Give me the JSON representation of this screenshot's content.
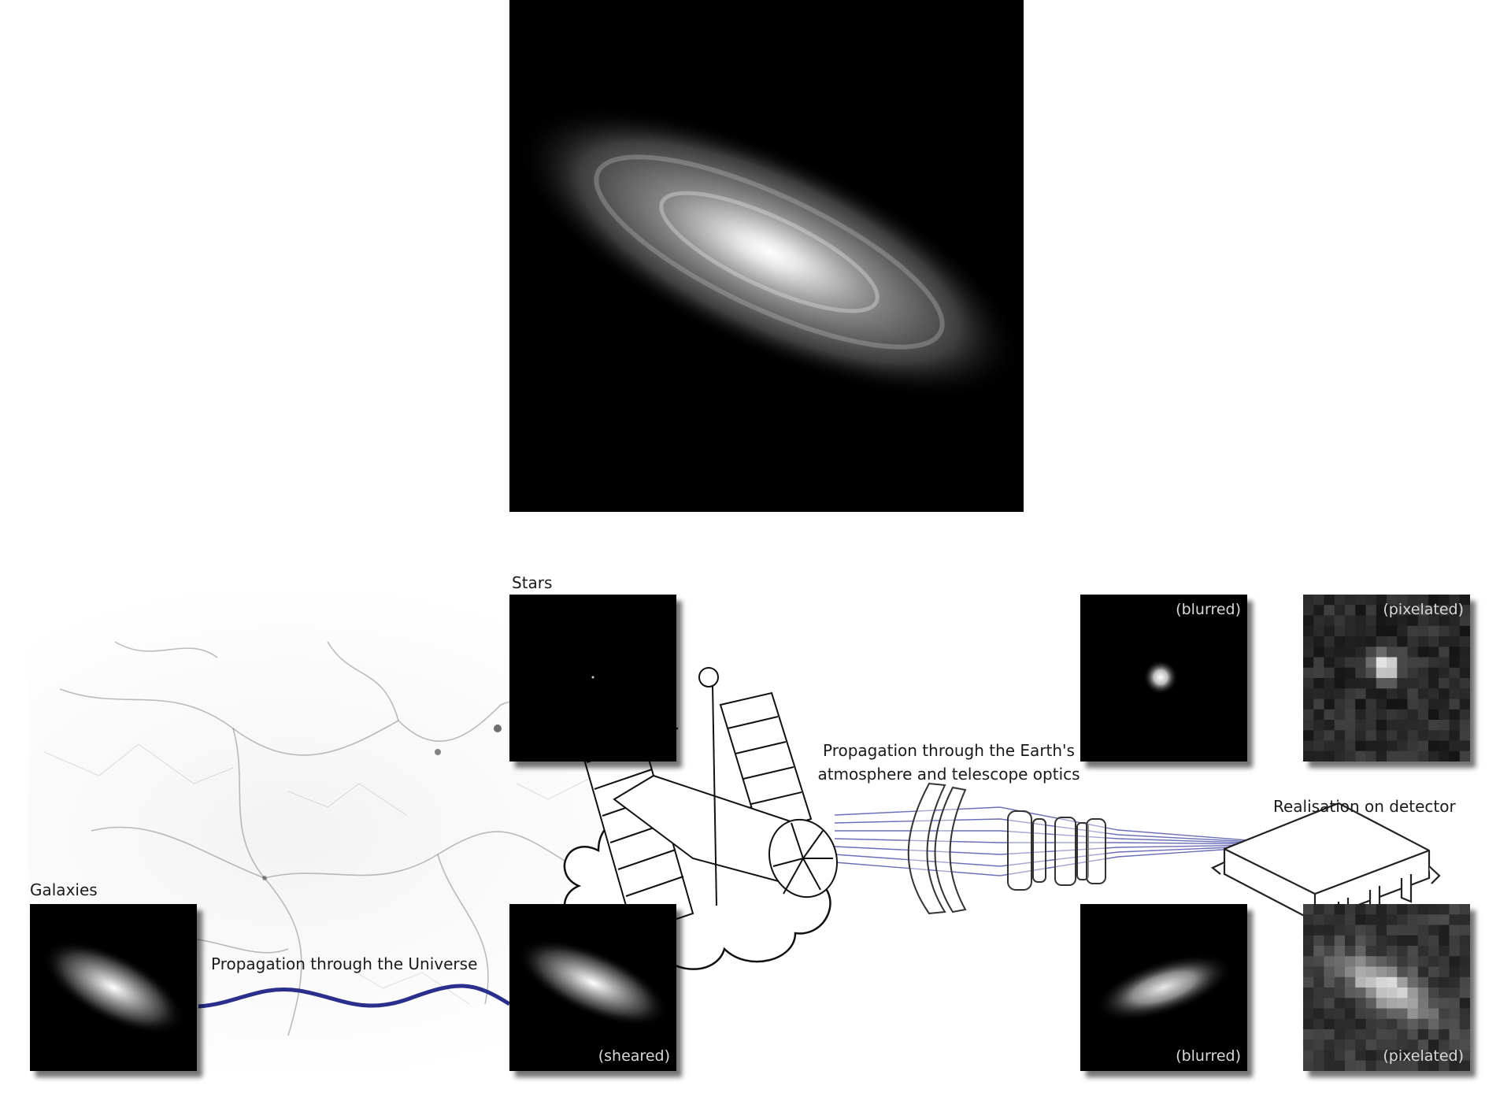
{
  "labels": {
    "stars": "Stars",
    "galaxies": "Galaxies",
    "universe": "Propagation through the Universe",
    "atmosphere_line1": "Propagation through the Earth's",
    "atmosphere_line2": "atmosphere and telescope optics",
    "detector": "Realisation on detector"
  },
  "panels": {
    "sheared": "(sheared)",
    "blurred_star": "(blurred)",
    "pixelated_star": "(pixelated)",
    "blurred_galaxy": "(blurred)",
    "pixelated_galaxy": "(pixelated)"
  },
  "colors": {
    "ray": "#2a2f8c",
    "panel_bg": "#000000"
  }
}
